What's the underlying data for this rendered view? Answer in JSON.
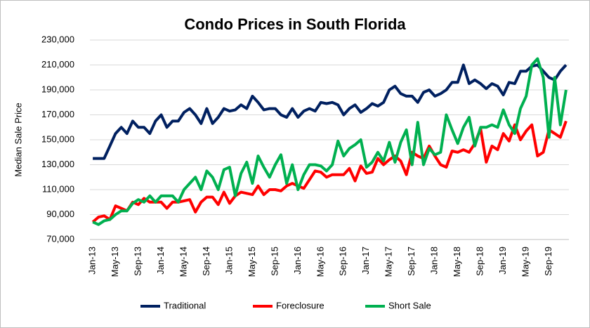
{
  "chart_data": {
    "type": "line",
    "title": "Condo Prices in South Florida",
    "y_label": "Median Sale Price",
    "categories": [
      "Jan-13",
      null,
      null,
      null,
      "May-13",
      null,
      null,
      null,
      "Sep-13",
      null,
      null,
      null,
      "Jan-14",
      null,
      null,
      null,
      "May-14",
      null,
      null,
      null,
      "Sep-14",
      null,
      null,
      null,
      "Jan-15",
      null,
      null,
      null,
      "May-15",
      null,
      null,
      null,
      "Sep-15",
      null,
      null,
      null,
      "Jan-16",
      null,
      null,
      null,
      "May-16",
      null,
      null,
      null,
      "Sep-16",
      null,
      null,
      null,
      "Jan-17",
      null,
      null,
      null,
      "May-17",
      null,
      null,
      null,
      "Sep-17",
      null,
      null,
      null,
      "Jan-18",
      null,
      null,
      null,
      "May-18",
      null,
      null,
      null,
      "Sep-18",
      null,
      null,
      null,
      "Jan-19",
      null,
      null,
      null,
      "May-19",
      null,
      null,
      null,
      "Sep-19",
      null,
      null,
      null
    ],
    "series": [
      {
        "name": "Traditional",
        "color": "#002060",
        "values": [
          135000,
          135000,
          135000,
          145000,
          155000,
          160000,
          155000,
          165000,
          160000,
          160000,
          155000,
          165000,
          170000,
          160000,
          165000,
          165000,
          172000,
          175000,
          170000,
          163000,
          175000,
          163000,
          168000,
          175000,
          173000,
          174000,
          178000,
          175000,
          185000,
          180000,
          174000,
          175000,
          175000,
          170000,
          168000,
          175000,
          168000,
          173000,
          175000,
          173000,
          180000,
          179000,
          180000,
          178000,
          170000,
          175000,
          178000,
          172000,
          175000,
          179000,
          177000,
          180000,
          190000,
          193000,
          187000,
          185000,
          185000,
          180000,
          188000,
          190000,
          185000,
          187000,
          190000,
          196000,
          196000,
          210000,
          195000,
          198000,
          195000,
          191000,
          195000,
          193000,
          186000,
          196000,
          195000,
          205000,
          205000,
          209000,
          210000,
          205000,
          200000,
          198000,
          205000,
          210000
        ]
      },
      {
        "name": "Foreclosure",
        "color": "#ff0000",
        "values": [
          84000,
          88000,
          89000,
          86000,
          97000,
          95000,
          93000,
          100000,
          98000,
          103000,
          100000,
          100000,
          100000,
          95000,
          100000,
          100000,
          101000,
          102000,
          92000,
          100000,
          104000,
          104000,
          98000,
          108000,
          99000,
          105000,
          108000,
          107000,
          106000,
          113000,
          106000,
          110000,
          110000,
          109000,
          113000,
          115000,
          113000,
          111000,
          118000,
          125000,
          124000,
          120000,
          122000,
          122000,
          122000,
          127000,
          117000,
          129000,
          123000,
          124000,
          135000,
          130000,
          134000,
          137000,
          133000,
          122000,
          140000,
          137000,
          135000,
          145000,
          137000,
          130000,
          128000,
          141000,
          140000,
          142000,
          140000,
          147000,
          159000,
          132000,
          145000,
          142000,
          155000,
          149000,
          162000,
          150000,
          157000,
          162000,
          137000,
          140000,
          158000,
          155000,
          152000,
          165000
        ]
      },
      {
        "name": "Short Sale",
        "color": "#00b050",
        "values": [
          84000,
          82000,
          85000,
          86000,
          90000,
          93000,
          93000,
          99000,
          102000,
          100000,
          105000,
          100000,
          105000,
          105000,
          105000,
          100000,
          110000,
          115000,
          120000,
          110000,
          125000,
          120000,
          110000,
          126000,
          128000,
          105000,
          123000,
          132000,
          115000,
          137000,
          128000,
          120000,
          130000,
          138000,
          115000,
          130000,
          110000,
          122000,
          130000,
          130000,
          129000,
          125000,
          130000,
          149000,
          137000,
          143000,
          146000,
          150000,
          128000,
          132000,
          140000,
          133000,
          148000,
          132000,
          148000,
          158000,
          130000,
          164000,
          130000,
          143000,
          138000,
          140000,
          170000,
          158000,
          147000,
          160000,
          168000,
          145000,
          160000,
          160000,
          162000,
          160000,
          174000,
          162000,
          155000,
          175000,
          185000,
          210000,
          215000,
          200000,
          152000,
          200000,
          162000,
          190000
        ]
      }
    ],
    "ylim": [
      70000,
      230000
    ],
    "yticks": [
      {
        "value": 70000,
        "label": "70,000"
      },
      {
        "value": 90000,
        "label": "90,000"
      },
      {
        "value": 110000,
        "label": "110,000"
      },
      {
        "value": 130000,
        "label": "130,000"
      },
      {
        "value": 150000,
        "label": "150,000"
      },
      {
        "value": 170000,
        "label": "170,000"
      },
      {
        "value": 190000,
        "label": "190,000"
      },
      {
        "value": 210000,
        "label": "210,000"
      },
      {
        "value": 230000,
        "label": "230,000"
      }
    ],
    "grid": true,
    "legend": "bottom"
  }
}
